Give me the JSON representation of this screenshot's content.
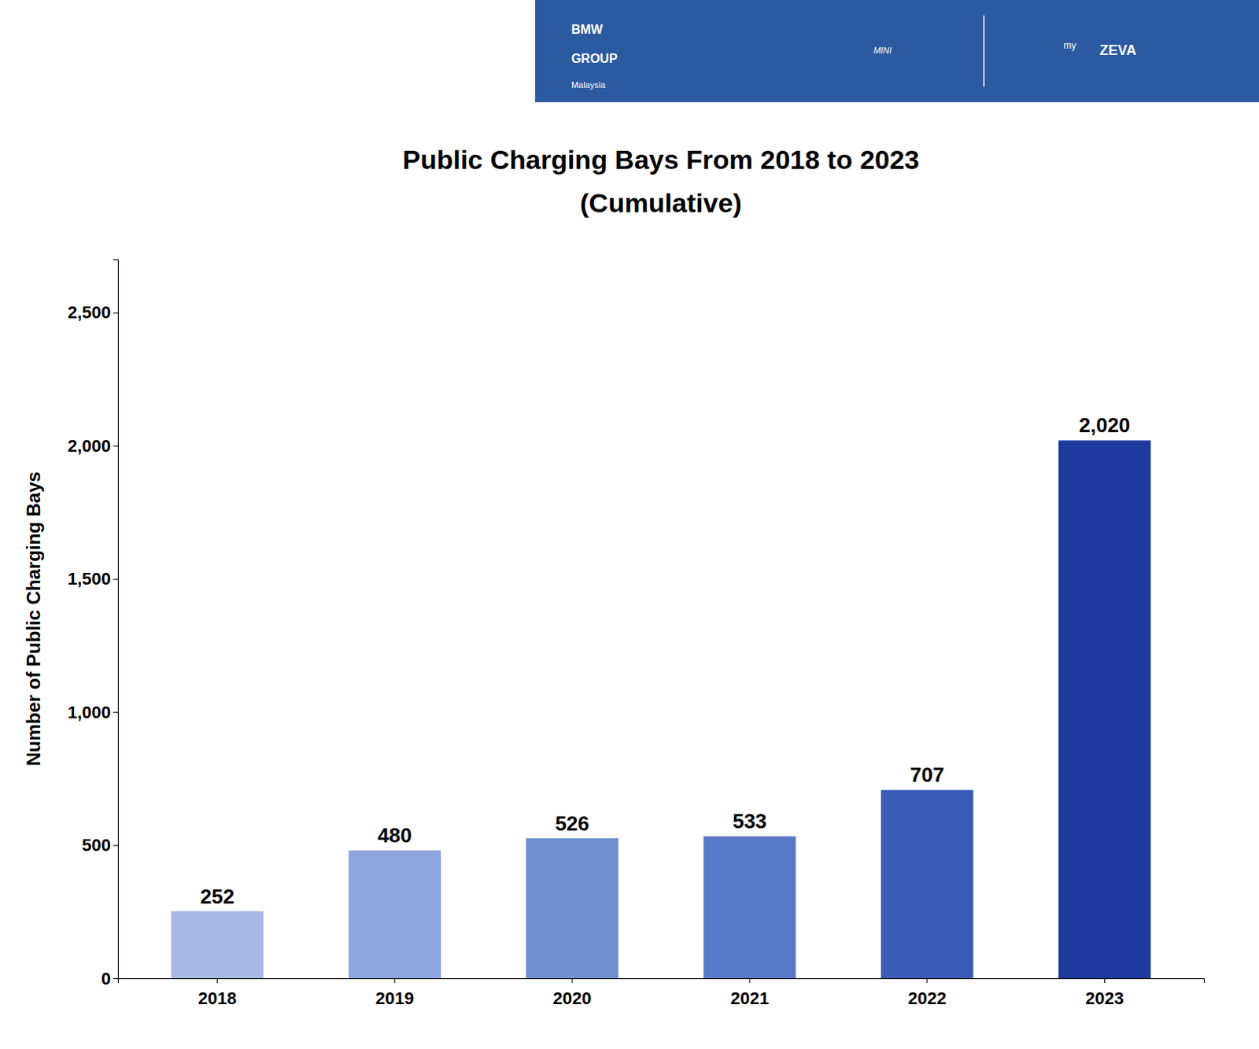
{
  "chart_data": {
    "type": "bar",
    "title": "Public Charging Bays From 2018 to 2023",
    "subtitle": "(Cumulative)",
    "y_label": "Number of Public Charging Bays",
    "categories": [
      "2018",
      "2019",
      "2020",
      "2021",
      "2022",
      "2023"
    ],
    "values": [
      252,
      480,
      526,
      533,
      707,
      2020
    ],
    "value_labels": [
      "252",
      "480",
      "526",
      "533",
      "707",
      "2,020"
    ],
    "colors": [
      "#aab8e8",
      "#8fa5df",
      "#7090d0",
      "#5878c8",
      "#3a5cb8",
      "#1e3a9e"
    ],
    "ylim": [
      0,
      2700
    ],
    "yticks": [
      0,
      500,
      {
        "value": 1000,
        "label": "1,000"
      },
      {
        "value": 1500,
        "label": "1,500"
      },
      {
        "value": 2000,
        "label": "2,000"
      },
      {
        "value": 2500,
        "label": "2,500"
      }
    ],
    "grid": false,
    "data_labels": true,
    "annotations": [
      "BMW",
      "GROUP",
      "Malaysia",
      "MINI",
      "my",
      "ZEVA"
    ]
  }
}
